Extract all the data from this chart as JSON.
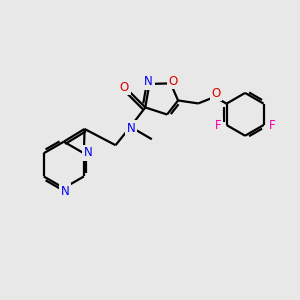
{
  "background_color": "#e8e8e8",
  "bond_color": "#000000",
  "bond_width": 1.6,
  "atom_colors": {
    "N": "#0000ee",
    "O": "#dd0000",
    "F": "#ee00aa",
    "C": "#000000"
  },
  "font_size_atom": 8.5,
  "fig_width": 3.0,
  "fig_height": 3.0
}
